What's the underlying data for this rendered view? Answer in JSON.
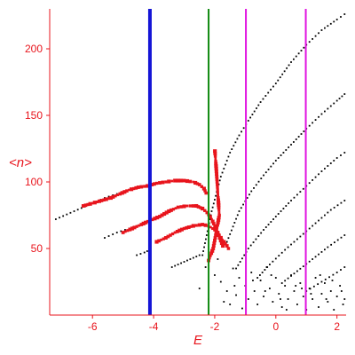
{
  "chart_data": {
    "type": "scatter",
    "title": "",
    "xlabel": "E",
    "ylabel": "<n>",
    "xlim": [
      -7.4,
      2.3
    ],
    "ylim": [
      0,
      230
    ],
    "xticks": [
      -6,
      -4,
      -2,
      0,
      2
    ],
    "yticks": [
      50,
      100,
      150,
      200
    ],
    "grid": false,
    "legend": "none",
    "colors": {
      "axes": "#e8141c",
      "points": "#000000",
      "highlight": "#e8141c",
      "line_blue": "#1414d6",
      "line_green": "#108a10",
      "line_magenta": "#e014e0"
    },
    "vlines": [
      {
        "x": -4.12,
        "color": "#1414d6"
      },
      {
        "x": -2.2,
        "color": "#108a10"
      },
      {
        "x": -0.98,
        "color": "#e014e0"
      },
      {
        "x": 0.98,
        "color": "#e014e0"
      }
    ],
    "black_series": [
      [
        [
          -7.2,
          72
        ],
        [
          -6.6,
          78
        ],
        [
          -6.0,
          84
        ],
        [
          -5.6,
          88
        ],
        [
          -5.2,
          91
        ],
        [
          -4.8,
          94
        ],
        [
          -4.4,
          96
        ],
        [
          -4.12,
          98
        ]
      ],
      [
        [
          -5.6,
          58
        ],
        [
          -5.2,
          62
        ],
        [
          -4.8,
          65
        ],
        [
          -4.4,
          68
        ],
        [
          -4.12,
          70
        ]
      ],
      [
        [
          -4.55,
          45
        ],
        [
          -4.3,
          47
        ],
        [
          -4.12,
          49
        ]
      ],
      [
        [
          -3.4,
          36
        ],
        [
          -3.1,
          39
        ],
        [
          -2.8,
          42
        ],
        [
          -2.5,
          45
        ]
      ],
      [
        [
          -2.4,
          45
        ],
        [
          -2.1,
          78
        ],
        [
          -1.8,
          104
        ],
        [
          -1.5,
          122
        ],
        [
          -1.2,
          135
        ],
        [
          -0.9,
          146
        ],
        [
          -0.5,
          160
        ],
        [
          0.0,
          174
        ],
        [
          0.5,
          190
        ],
        [
          1.0,
          203
        ],
        [
          1.5,
          214
        ],
        [
          2.0,
          222
        ],
        [
          2.25,
          226
        ]
      ],
      [
        [
          -1.6,
          55
        ],
        [
          -1.2,
          78
        ],
        [
          -0.8,
          93
        ],
        [
          -0.4,
          105
        ],
        [
          0.0,
          116
        ],
        [
          0.5,
          128
        ],
        [
          1.0,
          140
        ],
        [
          1.5,
          151
        ],
        [
          2.0,
          161
        ],
        [
          2.25,
          166
        ]
      ],
      [
        [
          -1.3,
          35
        ],
        [
          -0.9,
          50
        ],
        [
          -0.4,
          64
        ],
        [
          0.0,
          74
        ],
        [
          0.5,
          86
        ],
        [
          1.0,
          97
        ],
        [
          1.5,
          108
        ],
        [
          2.0,
          118
        ],
        [
          2.25,
          122
        ]
      ],
      [
        [
          -0.6,
          28
        ],
        [
          -0.2,
          38
        ],
        [
          0.3,
          49
        ],
        [
          0.8,
          59
        ],
        [
          1.3,
          69
        ],
        [
          1.8,
          79
        ],
        [
          2.25,
          86
        ]
      ],
      [
        [
          0.2,
          24
        ],
        [
          0.7,
          33
        ],
        [
          1.2,
          42
        ],
        [
          1.7,
          51
        ],
        [
          2.25,
          60
        ]
      ],
      [
        [
          1.0,
          18
        ],
        [
          1.5,
          25
        ],
        [
          2.0,
          32
        ],
        [
          2.25,
          36
        ]
      ]
    ],
    "red_series": [
      [
        [
          -6.3,
          82
        ],
        [
          -6.0,
          84
        ],
        [
          -5.7,
          86
        ],
        [
          -5.4,
          88
        ],
        [
          -5.1,
          91
        ],
        [
          -4.8,
          94
        ],
        [
          -4.5,
          96
        ],
        [
          -4.2,
          97
        ],
        [
          -3.9,
          99
        ],
        [
          -3.6,
          100
        ],
        [
          -3.3,
          101
        ],
        [
          -3.0,
          101
        ],
        [
          -2.7,
          100
        ],
        [
          -2.5,
          98
        ],
        [
          -2.35,
          95
        ],
        [
          -2.25,
          90
        ]
      ],
      [
        [
          -5.0,
          62
        ],
        [
          -4.7,
          65
        ],
        [
          -4.4,
          68
        ],
        [
          -4.12,
          71
        ],
        [
          -3.8,
          74
        ],
        [
          -3.5,
          78
        ],
        [
          -3.2,
          81
        ],
        [
          -2.9,
          82
        ],
        [
          -2.6,
          82
        ],
        [
          -2.4,
          80
        ],
        [
          -2.25,
          77
        ],
        [
          -2.1,
          72
        ],
        [
          -1.9,
          62
        ],
        [
          -1.7,
          50
        ]
      ],
      [
        [
          -3.9,
          55
        ],
        [
          -3.6,
          58
        ],
        [
          -3.3,
          62
        ],
        [
          -3.0,
          65
        ],
        [
          -2.7,
          67
        ],
        [
          -2.4,
          68
        ],
        [
          -2.2,
          67
        ],
        [
          -2.0,
          64
        ],
        [
          -1.8,
          58
        ],
        [
          -1.6,
          52
        ],
        [
          -1.5,
          48
        ]
      ],
      [
        [
          -2.2,
          41
        ],
        [
          -2.05,
          50
        ],
        [
          -1.95,
          62
        ],
        [
          -1.85,
          75
        ],
        [
          -1.9,
          92
        ],
        [
          -1.95,
          110
        ],
        [
          -2.0,
          125
        ]
      ]
    ],
    "black_scatter": [
      [
        -2.5,
        20
      ],
      [
        -2.2,
        12
      ],
      [
        -2.0,
        30
      ],
      [
        -1.8,
        25
      ],
      [
        -1.6,
        18
      ],
      [
        -1.5,
        8
      ],
      [
        -1.4,
        35
      ],
      [
        -1.3,
        15
      ],
      [
        -1.2,
        28
      ],
      [
        -1.1,
        5
      ],
      [
        -1.0,
        22
      ],
      [
        -0.9,
        12
      ],
      [
        -0.8,
        32
      ],
      [
        -0.7,
        18
      ],
      [
        -0.6,
        8
      ],
      [
        -0.5,
        26
      ],
      [
        -0.4,
        14
      ],
      [
        -0.3,
        36
      ],
      [
        -0.2,
        20
      ],
      [
        -0.1,
        10
      ],
      [
        0.0,
        28
      ],
      [
        0.1,
        16
      ],
      [
        0.2,
        6
      ],
      [
        0.3,
        22
      ],
      [
        0.4,
        12
      ],
      [
        0.5,
        30
      ],
      [
        0.6,
        18
      ],
      [
        0.7,
        8
      ],
      [
        0.8,
        24
      ],
      [
        0.9,
        14
      ],
      [
        1.0,
        4
      ],
      [
        1.1,
        20
      ],
      [
        1.2,
        12
      ],
      [
        1.3,
        28
      ],
      [
        1.4,
        6
      ],
      [
        1.5,
        16
      ],
      [
        1.6,
        24
      ],
      [
        1.7,
        10
      ],
      [
        1.8,
        18
      ],
      [
        1.9,
        4
      ],
      [
        2.0,
        14
      ],
      [
        2.1,
        22
      ],
      [
        2.2,
        8
      ],
      [
        -0.35,
        18
      ],
      [
        0.15,
        12
      ],
      [
        0.65,
        22
      ],
      [
        1.15,
        16
      ],
      [
        1.65,
        12
      ],
      [
        2.15,
        18
      ],
      [
        -1.7,
        10
      ],
      [
        -0.75,
        26
      ],
      [
        0.35,
        4
      ],
      [
        1.45,
        30
      ],
      [
        -2.3,
        36
      ],
      [
        -1.9,
        42
      ],
      [
        -0.15,
        30
      ],
      [
        0.85,
        20
      ],
      [
        1.85,
        26
      ],
      [
        2.25,
        12
      ],
      [
        -1.35,
        22
      ]
    ]
  }
}
